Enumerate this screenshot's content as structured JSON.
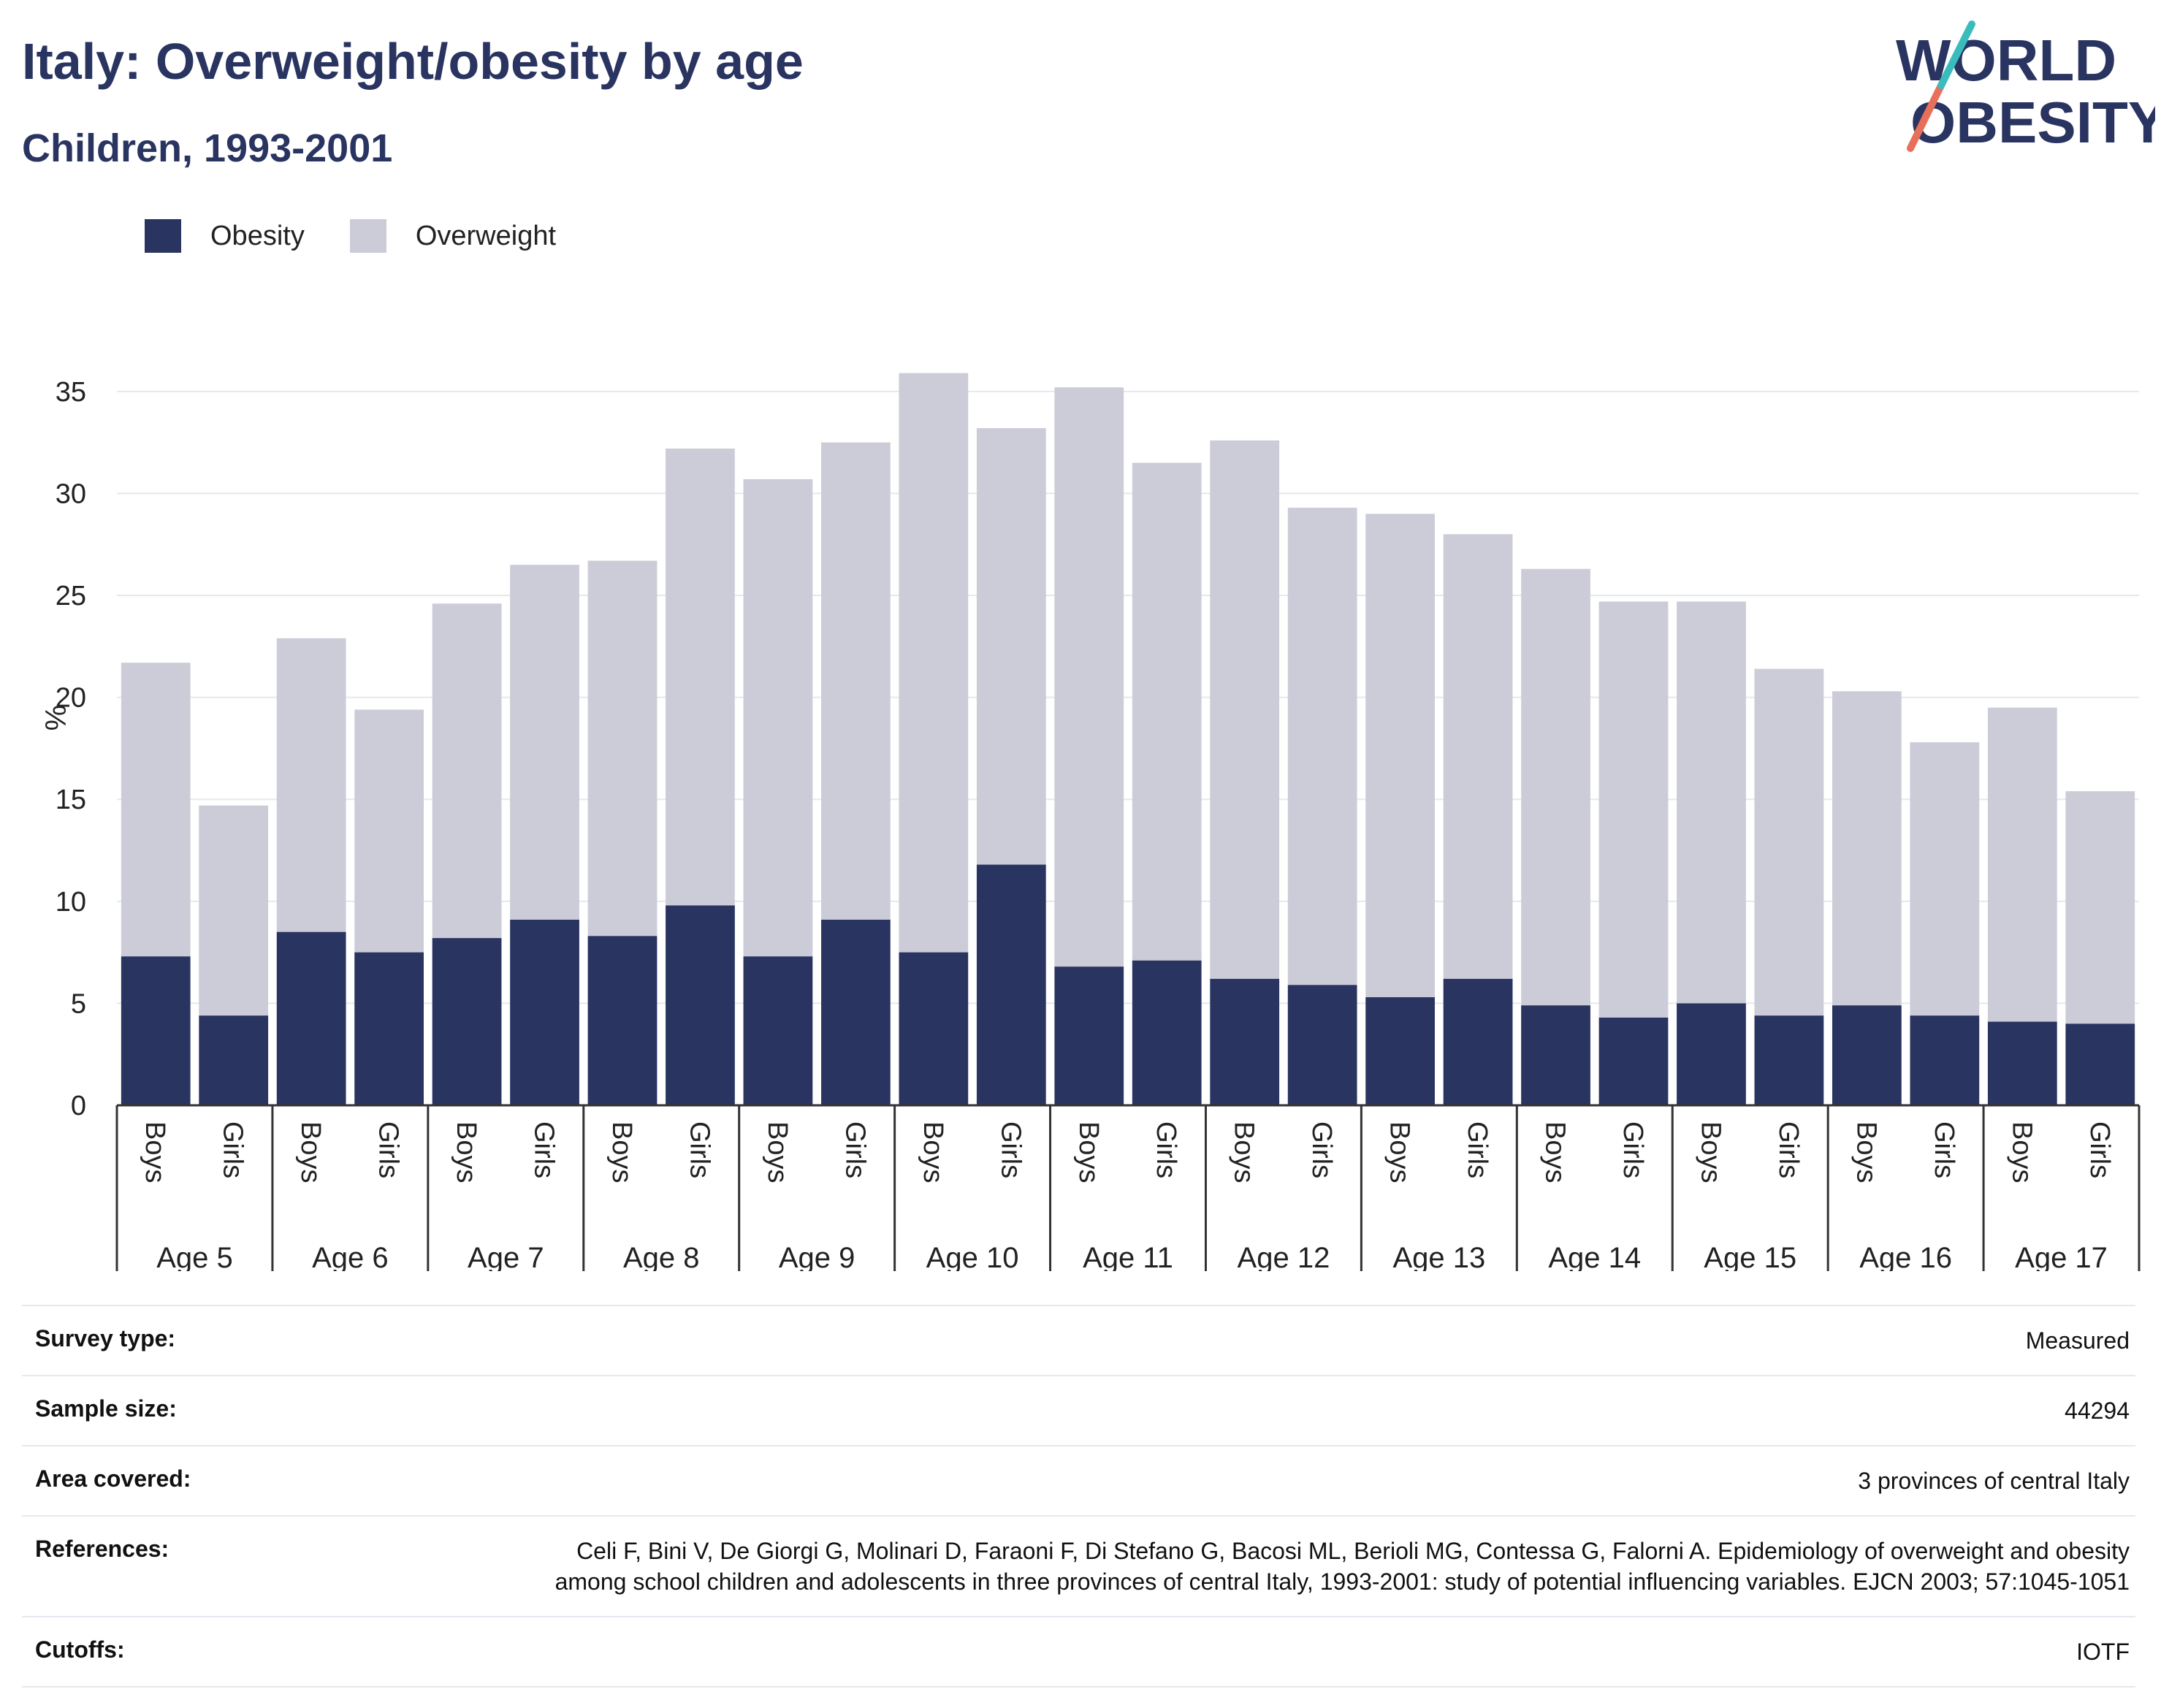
{
  "header": {
    "title": "Italy: Overweight/obesity by age",
    "subtitle": "Children, 1993-2001"
  },
  "logo": {
    "line1": "WORLD",
    "line2": "OBESITY"
  },
  "colors": {
    "obesity": "#2a3461",
    "overweight": "#cbccd8",
    "text": "#2a3461",
    "grid": "#e6e8ef"
  },
  "legend": {
    "obesity_label": "Obesity",
    "overweight_label": "Overweight"
  },
  "chart_data": {
    "type": "bar",
    "stacked": true,
    "ylabel": "%",
    "ylim": [
      0,
      37
    ],
    "yticks": [
      0,
      5,
      10,
      15,
      20,
      25,
      30,
      35
    ],
    "grid": true,
    "legend_position": "top-left",
    "groups": [
      "Age 5",
      "Age 6",
      "Age 7",
      "Age 8",
      "Age 9",
      "Age 10",
      "Age 11",
      "Age 12",
      "Age 13",
      "Age 14",
      "Age 15",
      "Age 16",
      "Age 17"
    ],
    "subcategories": [
      "Boys",
      "Girls"
    ],
    "series": [
      {
        "name": "Obesity",
        "values": [
          7.3,
          4.4,
          8.5,
          7.5,
          8.2,
          9.1,
          8.3,
          9.8,
          7.3,
          9.1,
          7.5,
          11.8,
          6.8,
          7.1,
          6.2,
          5.9,
          5.3,
          6.2,
          4.9,
          4.3,
          5.0,
          4.4,
          4.9,
          4.4,
          4.1,
          4.0
        ]
      },
      {
        "name": "Overweight",
        "values": [
          14.4,
          10.3,
          14.4,
          11.9,
          16.4,
          17.4,
          18.4,
          22.4,
          23.4,
          23.4,
          28.4,
          21.4,
          28.4,
          24.4,
          26.4,
          23.4,
          23.7,
          21.8,
          21.4,
          20.4,
          19.7,
          17.0,
          15.4,
          13.4,
          15.4,
          11.4
        ]
      }
    ]
  },
  "meta": [
    {
      "label": "Survey type:",
      "value": "Measured"
    },
    {
      "label": "Sample size:",
      "value": "44294"
    },
    {
      "label": "Area covered:",
      "value": "3 provinces of central Italy"
    },
    {
      "label": "References:",
      "value": "Celi F, Bini V, De Giorgi G, Molinari D, Faraoni F, Di Stefano G, Bacosi ML, Berioli MG, Contessa G, Falorni A. Epidemiology of overweight and obesity among school children and adolescents in three provinces of central Italy, 1993-2001: study of potential influencing variables. EJCN 2003; 57:1045-1051"
    },
    {
      "label": "Cutoffs:",
      "value": "IOTF"
    }
  ]
}
